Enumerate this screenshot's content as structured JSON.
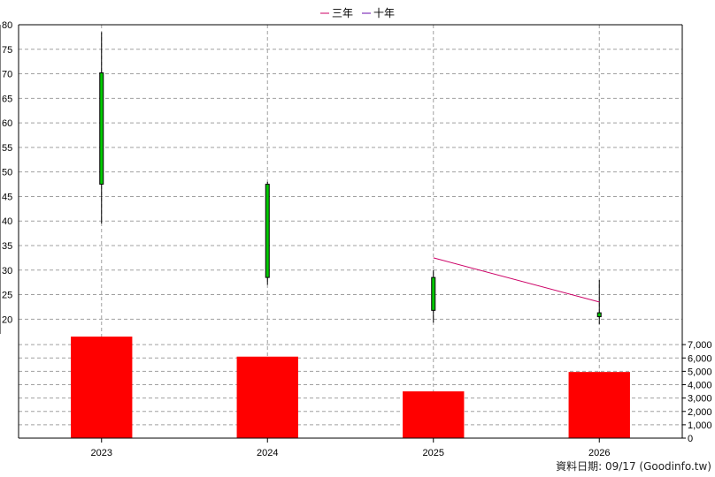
{
  "chart_data": [
    {
      "type": "candlestick",
      "categories": [
        "2023",
        "2024",
        "2025",
        "2026"
      ],
      "ohlc": [
        {
          "x": "2023",
          "open": 47.5,
          "high": 78.5,
          "low": 39.5,
          "close": 70.2
        },
        {
          "x": "2024",
          "open": 28.5,
          "high": 48.0,
          "low": 27.0,
          "close": 47.5
        },
        {
          "x": "2025",
          "open": 21.8,
          "high": 30.0,
          "low": 19.3,
          "close": 28.5
        },
        {
          "x": "2026",
          "open": 20.5,
          "high": 28.0,
          "low": 19.0,
          "close": 21.3
        }
      ],
      "series": [
        {
          "name": "三年",
          "color": "#cc0066",
          "points": [
            {
              "x": "2025",
              "y": 32.5
            },
            {
              "x": "2026",
              "y": 23.5
            }
          ]
        },
        {
          "name": "十年",
          "color": "#6a0dad",
          "points": []
        }
      ],
      "ylim": [
        17,
        80
      ],
      "yticks": [
        20,
        25,
        30,
        35,
        40,
        45,
        50,
        55,
        60,
        65,
        70,
        75,
        80
      ],
      "up_color": "#00c800",
      "grid": true,
      "legend": "top-center"
    },
    {
      "type": "bar",
      "categories": [
        "2023",
        "2024",
        "2025",
        "2026"
      ],
      "values": [
        7600,
        6100,
        3500,
        4950
      ],
      "ylim": [
        0,
        8000
      ],
      "yticks": [
        "0",
        "1,000",
        "2,000",
        "3,000",
        "4,000",
        "5,000",
        "6,000",
        "7,000"
      ],
      "color": "#ff0000",
      "grid": true
    }
  ],
  "footer": {
    "source": "資料日期: 09/17  (Goodinfo.tw)"
  }
}
